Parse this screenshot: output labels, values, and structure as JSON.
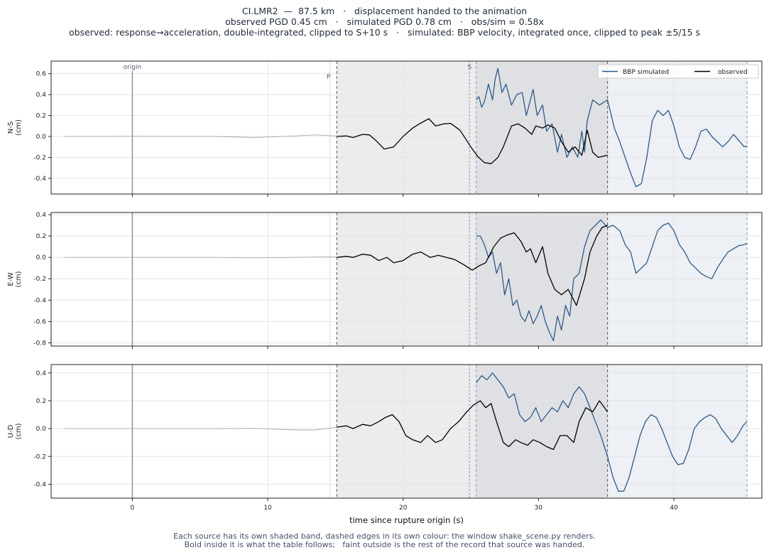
{
  "title_lines": [
    "CI.LMR2  —  87.5 km   ·   displacement handed to the animation",
    "observed PGD 0.45 cm   ·   simulated PGD 0.78 cm   ·   obs/sim = 0.58x",
    "observed: response→acceleration, double-integrated, clipped to S+10 s   ·   simulated: BBP velocity, integrated once, clipped to peak ±5/15 s"
  ],
  "footer_lines": [
    "Each source has its own shaded band, dashed edges in its own colour: the window shake_scene.py renders.",
    "Bold inside it is what the table follows;   faint outside is the rest of the record that source was handed."
  ],
  "colors": {
    "simulated": "#2e5a87",
    "observed": "#000000",
    "faint": "#aaaaaa",
    "observed_band": "#ececec",
    "simulated_band": "#edf0f4",
    "overlap_band": "#dfe0e4",
    "grid": "#e4e4e4",
    "origin_line": "#8c9aa3"
  },
  "chart_data": {
    "type": "line",
    "xlabel": "time since rupture origin (s)",
    "xlim": [
      -6,
      46.5
    ],
    "xticks": [
      0,
      10,
      20,
      30,
      40
    ],
    "annotations": {
      "origin": {
        "label": "origin",
        "t": 0
      },
      "p": {
        "label": "P",
        "t": 14.6
      },
      "s": {
        "label": "S",
        "t": 24.9
      }
    },
    "windows": {
      "observed": [
        15.1,
        35.1
      ],
      "simulated": [
        25.4,
        45.4
      ]
    },
    "legend": {
      "entries": [
        "BBP simulated",
        "observed"
      ],
      "placement": "top-right"
    },
    "panels": [
      {
        "ylabel": "N-S\n(cm)",
        "ylim": [
          -0.55,
          0.72
        ],
        "yticks": [
          -0.4,
          -0.2,
          0.0,
          0.2,
          0.4,
          0.6
        ],
        "observed_faint": {
          "t": [
            -5,
            -2,
            0,
            3,
            6,
            9,
            12,
            13.5,
            15.1
          ],
          "v": [
            0,
            0,
            0.002,
            0,
            0,
            -0.01,
            0.005,
            0.015,
            0.005
          ]
        },
        "observed": {
          "t": [
            15.1,
            15.8,
            16.3,
            17,
            17.5,
            18,
            18.6,
            19.3,
            20,
            20.7,
            21.2,
            21.9,
            22.4,
            23,
            23.5,
            24.2,
            25,
            25.5,
            26,
            26.5,
            27,
            27.4,
            28,
            28.5,
            29,
            29.5,
            29.8,
            30.3,
            30.7,
            31.2,
            31.7,
            32.2,
            32.7,
            33.2,
            33.6,
            34,
            34.4,
            35.1
          ],
          "v": [
            0,
            0.005,
            -0.01,
            0.02,
            0.015,
            -0.04,
            -0.12,
            -0.1,
            0,
            0.08,
            0.12,
            0.17,
            0.1,
            0.12,
            0.125,
            0.06,
            -0.1,
            -0.19,
            -0.25,
            -0.26,
            -0.2,
            -0.1,
            0.1,
            0.12,
            0.08,
            0.02,
            0.1,
            0.08,
            0.11,
            0.08,
            -0.05,
            -0.15,
            -0.1,
            -0.18,
            0.06,
            -0.15,
            -0.2,
            -0.18
          ]
        },
        "simulated": {
          "t": [
            25.4,
            25.6,
            25.8,
            26,
            26.3,
            26.6,
            26.8,
            27,
            27.3,
            27.6,
            28,
            28.4,
            28.8,
            29.1,
            29.3,
            29.6,
            29.9,
            30.3,
            30.6,
            31,
            31.4,
            31.7,
            32.1,
            32.5,
            32.9,
            33.2,
            33.4,
            33.6,
            34,
            34.5,
            35.1,
            35.6,
            36,
            36.4,
            36.8,
            37.2,
            37.6,
            38,
            38.4,
            38.8,
            39.2,
            39.6,
            40,
            40.4,
            40.8,
            41.2,
            41.6,
            42,
            42.4,
            42.8,
            43.2,
            43.6,
            44,
            44.4,
            44.8,
            45.2,
            45.4
          ],
          "v": [
            0.35,
            0.38,
            0.28,
            0.33,
            0.5,
            0.35,
            0.55,
            0.65,
            0.42,
            0.5,
            0.3,
            0.4,
            0.42,
            0.2,
            0.3,
            0.45,
            0.2,
            0.3,
            0.05,
            0.12,
            -0.15,
            0.02,
            -0.2,
            -0.1,
            -0.2,
            0.05,
            -0.15,
            0.15,
            0.35,
            0.3,
            0.35,
            0.08,
            -0.05,
            -0.2,
            -0.35,
            -0.48,
            -0.45,
            -0.2,
            0.15,
            0.25,
            0.2,
            0.25,
            0.1,
            -0.1,
            -0.2,
            -0.22,
            -0.1,
            0.05,
            0.07,
            0,
            -0.05,
            -0.1,
            -0.05,
            0.02,
            -0.04,
            -0.1,
            -0.09
          ]
        }
      },
      {
        "ylabel": "E-W\n(cm)",
        "ylim": [
          -0.83,
          0.42
        ],
        "yticks": [
          -0.8,
          -0.6,
          -0.4,
          -0.2,
          0.0,
          0.2,
          0.4
        ],
        "observed_faint": {
          "t": [
            -5,
            -2,
            0,
            3,
            6,
            9,
            12,
            14,
            15.1
          ],
          "v": [
            0,
            0,
            0,
            0,
            0,
            -0.005,
            0,
            0.005,
            0.005
          ]
        },
        "observed": {
          "t": [
            15.1,
            15.8,
            16.3,
            17,
            17.6,
            18.2,
            18.8,
            19.3,
            20,
            20.7,
            21.3,
            22,
            22.6,
            23.2,
            23.8,
            24.5,
            25.1,
            25.6,
            26.1,
            26.7,
            27.2,
            27.7,
            28.2,
            28.7,
            29.1,
            29.4,
            29.8,
            30.3,
            30.7,
            31.2,
            31.7,
            32.2,
            32.8,
            33.4,
            33.8,
            34.3,
            34.7,
            35.1
          ],
          "v": [
            0,
            0.01,
            0,
            0.03,
            0.02,
            -0.03,
            0,
            -0.05,
            -0.03,
            0.03,
            0.05,
            0,
            0.02,
            0,
            -0.02,
            -0.07,
            -0.12,
            -0.08,
            -0.05,
            0.1,
            0.18,
            0.21,
            0.23,
            0.15,
            0.05,
            0.08,
            -0.05,
            0.1,
            -0.15,
            -0.3,
            -0.35,
            -0.3,
            -0.45,
            -0.2,
            0.05,
            0.2,
            0.28,
            0.3
          ]
        },
        "simulated": {
          "t": [
            25.4,
            25.7,
            26,
            26.3,
            26.6,
            26.9,
            27.2,
            27.5,
            27.8,
            28.1,
            28.4,
            28.7,
            29,
            29.3,
            29.6,
            29.9,
            30.2,
            30.5,
            30.8,
            31.1,
            31.4,
            31.7,
            32,
            32.3,
            32.6,
            33,
            33.4,
            33.8,
            34.2,
            34.6,
            35.1,
            35.5,
            36,
            36.4,
            36.8,
            37.2,
            37.6,
            38,
            38.4,
            38.8,
            39.2,
            39.6,
            40,
            40.4,
            40.8,
            41.2,
            41.6,
            42,
            42.4,
            42.8,
            43.2,
            43.6,
            44,
            44.4,
            44.8,
            45.2,
            45.4
          ],
          "v": [
            0.2,
            0.2,
            0.12,
            0,
            0.05,
            -0.15,
            -0.05,
            -0.35,
            -0.2,
            -0.45,
            -0.4,
            -0.55,
            -0.6,
            -0.5,
            -0.62,
            -0.55,
            -0.45,
            -0.6,
            -0.7,
            -0.78,
            -0.55,
            -0.68,
            -0.45,
            -0.55,
            -0.2,
            -0.15,
            0.1,
            0.25,
            0.3,
            0.35,
            0.28,
            0.3,
            0.25,
            0.12,
            0.05,
            -0.15,
            -0.1,
            -0.05,
            0.1,
            0.25,
            0.3,
            0.32,
            0.25,
            0.12,
            0.05,
            -0.05,
            -0.1,
            -0.15,
            -0.18,
            -0.2,
            -0.1,
            -0.02,
            0.05,
            0.08,
            0.11,
            0.12,
            0.13
          ]
        }
      },
      {
        "ylabel": "U-D\n(cm)",
        "ylim": [
          -0.5,
          0.46
        ],
        "yticks": [
          -0.4,
          -0.2,
          0.0,
          0.2,
          0.4
        ],
        "observed_faint": {
          "t": [
            -5,
            -2,
            0,
            3,
            6,
            9,
            12,
            13.5,
            15.1
          ],
          "v": [
            0,
            0,
            0,
            0,
            0,
            0.002,
            -0.01,
            -0.01,
            0.01
          ]
        },
        "observed": {
          "t": [
            15.1,
            15.8,
            16.3,
            17,
            17.6,
            18.2,
            18.7,
            19.2,
            19.7,
            20.2,
            20.7,
            21.3,
            21.8,
            22.4,
            22.9,
            23.5,
            24.1,
            24.7,
            25.2,
            25.7,
            26.1,
            26.5,
            26.9,
            27.4,
            27.8,
            28.3,
            28.7,
            29.2,
            29.6,
            30.1,
            30.6,
            31.1,
            31.6,
            32.1,
            32.6,
            33,
            33.5,
            34,
            34.5,
            35.1
          ],
          "v": [
            0.01,
            0.02,
            0,
            0.03,
            0.02,
            0.05,
            0.08,
            0.1,
            0.05,
            -0.05,
            -0.08,
            -0.1,
            -0.05,
            -0.1,
            -0.08,
            0,
            0.05,
            0.12,
            0.17,
            0.2,
            0.15,
            0.18,
            0.05,
            -0.1,
            -0.13,
            -0.08,
            -0.1,
            -0.12,
            -0.08,
            -0.1,
            -0.13,
            -0.15,
            -0.05,
            -0.05,
            -0.1,
            0.05,
            0.15,
            0.12,
            0.2,
            0.12
          ]
        },
        "simulated": {
          "t": [
            25.4,
            25.8,
            26.2,
            26.6,
            27,
            27.4,
            27.8,
            28.2,
            28.6,
            29,
            29.4,
            29.8,
            30.2,
            30.6,
            31,
            31.4,
            31.8,
            32.2,
            32.6,
            33,
            33.4,
            33.8,
            34.2,
            34.6,
            35.1,
            35.5,
            35.9,
            36.3,
            36.7,
            37.1,
            37.5,
            37.9,
            38.3,
            38.7,
            39.1,
            39.5,
            39.9,
            40.3,
            40.7,
            41.1,
            41.5,
            41.9,
            42.3,
            42.7,
            43.1,
            43.5,
            43.9,
            44.3,
            44.7,
            45.1,
            45.4
          ],
          "v": [
            0.33,
            0.38,
            0.35,
            0.4,
            0.35,
            0.3,
            0.22,
            0.25,
            0.1,
            0.05,
            0.08,
            0.15,
            0.05,
            0.1,
            0.15,
            0.12,
            0.2,
            0.15,
            0.25,
            0.3,
            0.25,
            0.15,
            0.05,
            -0.05,
            -0.2,
            -0.35,
            -0.45,
            -0.45,
            -0.35,
            -0.2,
            -0.05,
            0.05,
            0.1,
            0.08,
            0,
            -0.1,
            -0.2,
            -0.26,
            -0.25,
            -0.15,
            0,
            0.05,
            0.08,
            0.1,
            0.07,
            0,
            -0.05,
            -0.1,
            -0.05,
            0.02,
            0.05
          ]
        }
      }
    ]
  }
}
